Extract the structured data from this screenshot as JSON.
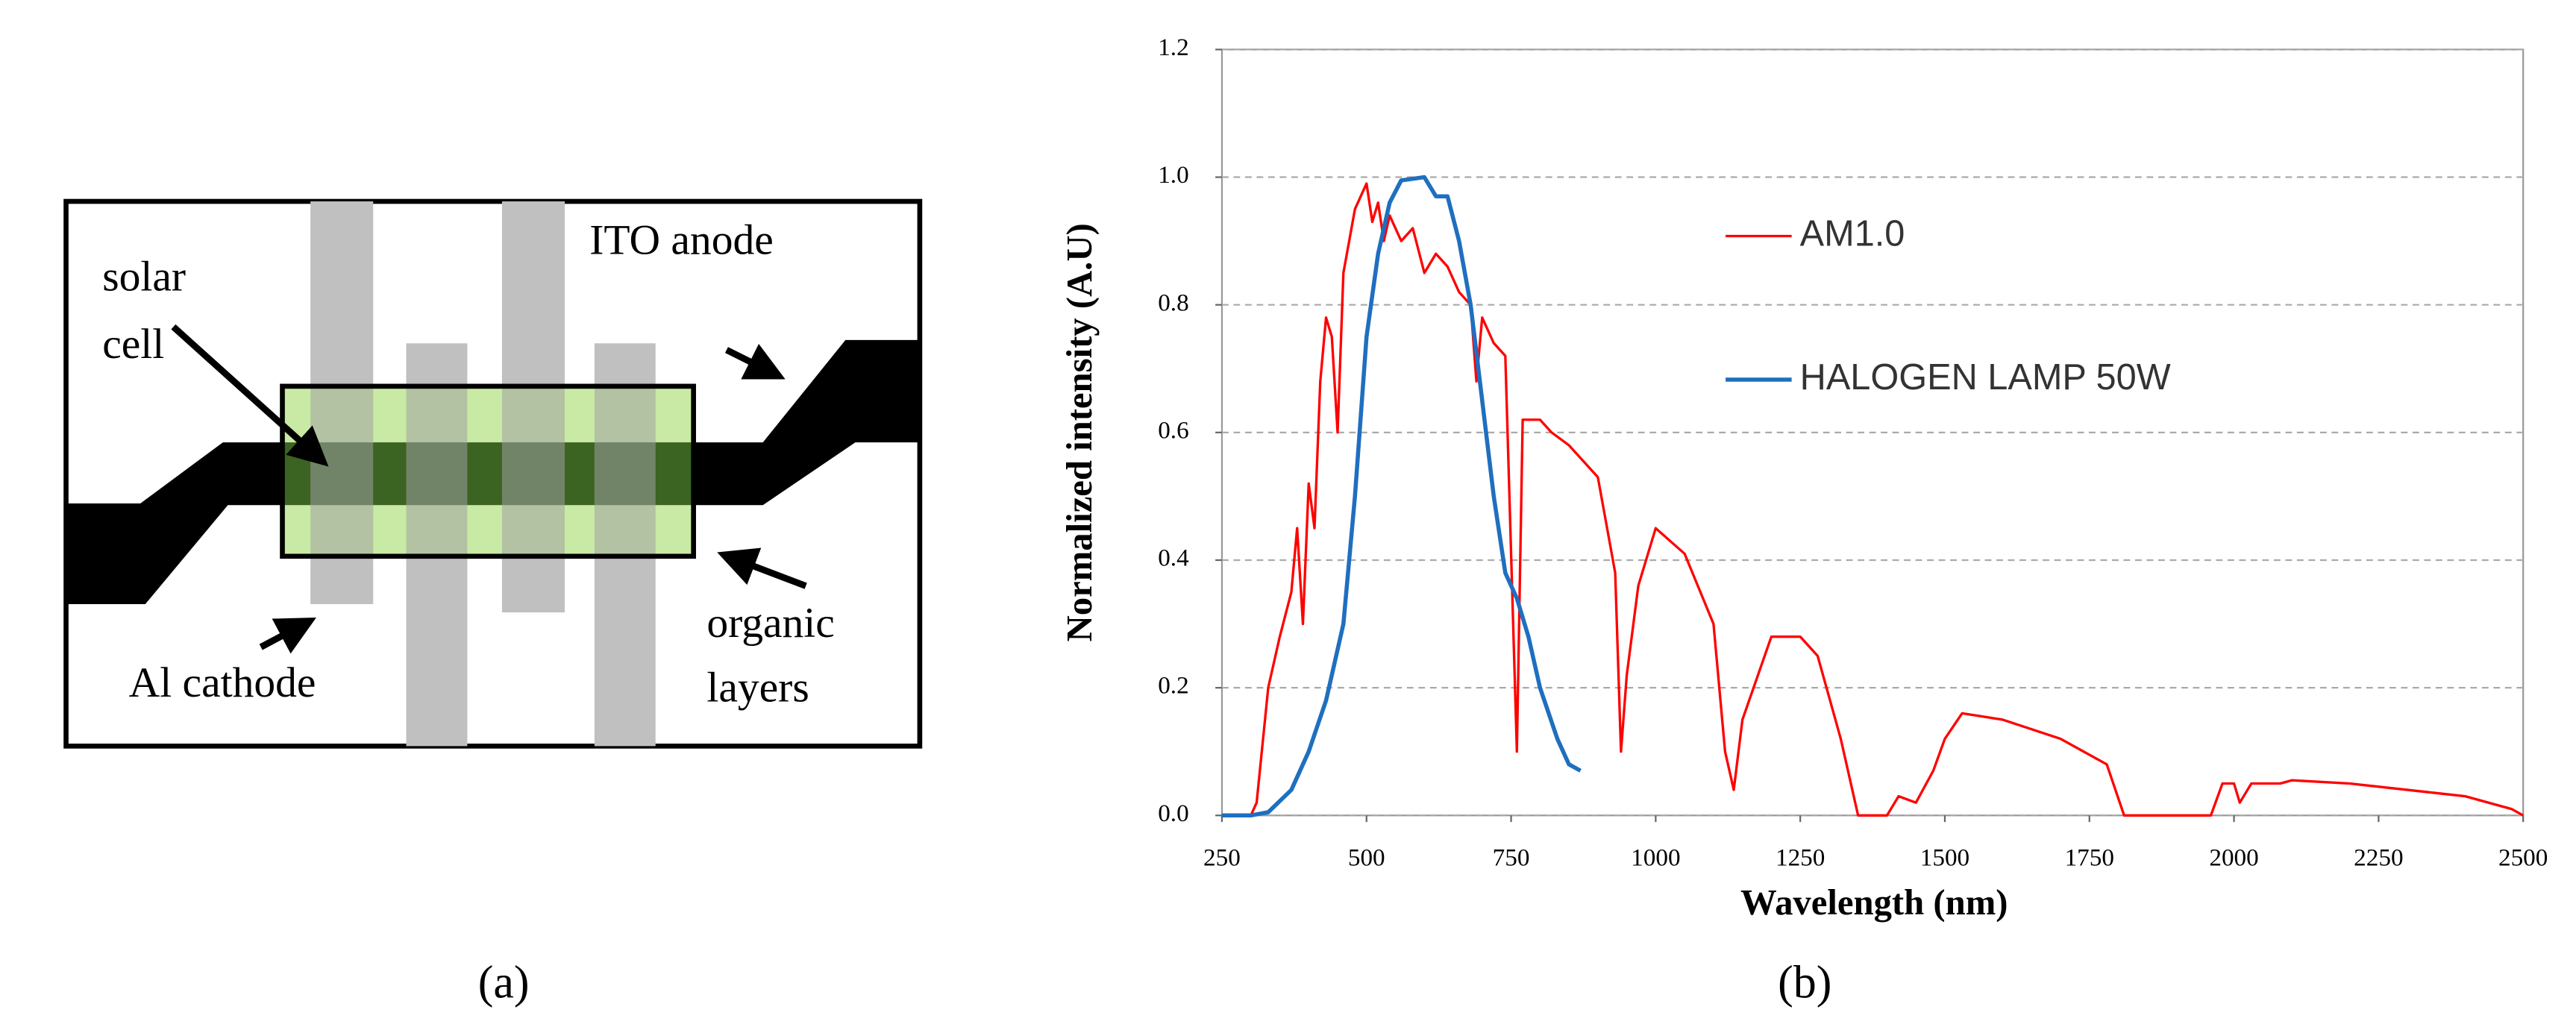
{
  "diagram": {
    "ito_anode": "ITO anode",
    "solar_cell": [
      "solar",
      "cell"
    ],
    "al_cathode": "Al cathode",
    "organic_layers": [
      "organic",
      "layers"
    ]
  },
  "captions": [
    "(a)",
    "(b)"
  ],
  "chart_data": {
    "type": "line",
    "xlabel": "Wavelength (nm)",
    "ylabel": "Normalized intensity (A.U)",
    "xlim": [
      250,
      2500
    ],
    "xticks": [
      250,
      500,
      750,
      1000,
      1250,
      1500,
      1750,
      2000,
      2250,
      2500
    ],
    "ylim": [
      0,
      1.2
    ],
    "yticks": [
      {
        "value": 0,
        "label": "0.0"
      },
      0.2,
      0.4,
      0.6,
      0.8,
      {
        "value": 1,
        "label": "1.0"
      },
      1.2
    ],
    "grid": true,
    "series": [
      {
        "name": "AM1.0",
        "color": "#ff0000",
        "x": [
          250,
          300,
          310,
          330,
          350,
          370,
          380,
          390,
          400,
          410,
          420,
          430,
          440,
          450,
          460,
          470,
          480,
          490,
          500,
          510,
          520,
          530,
          540,
          560,
          580,
          600,
          620,
          640,
          660,
          680,
          690,
          700,
          720,
          740,
          760,
          770,
          800,
          820,
          850,
          900,
          930,
          940,
          950,
          970,
          1000,
          1050,
          1100,
          1120,
          1135,
          1150,
          1200,
          1250,
          1280,
          1320,
          1350,
          1400,
          1420,
          1450,
          1480,
          1500,
          1530,
          1600,
          1700,
          1780,
          1810,
          1960,
          1980,
          2000,
          2010,
          2030,
          2080,
          2100,
          2200,
          2300,
          2400,
          2480,
          2500
        ],
        "values": [
          0,
          0,
          0.02,
          0.2,
          0.28,
          0.35,
          0.45,
          0.3,
          0.52,
          0.45,
          0.68,
          0.78,
          0.75,
          0.6,
          0.85,
          0.9,
          0.95,
          0.97,
          0.99,
          0.93,
          0.96,
          0.9,
          0.94,
          0.9,
          0.92,
          0.85,
          0.88,
          0.86,
          0.82,
          0.8,
          0.68,
          0.78,
          0.74,
          0.72,
          0.1,
          0.62,
          0.62,
          0.6,
          0.58,
          0.53,
          0.38,
          0.1,
          0.22,
          0.36,
          0.45,
          0.41,
          0.3,
          0.1,
          0.04,
          0.15,
          0.28,
          0.28,
          0.25,
          0.12,
          0,
          0,
          0.03,
          0.02,
          0.07,
          0.12,
          0.16,
          0.15,
          0.12,
          0.08,
          0,
          0,
          0.05,
          0.05,
          0.02,
          0.05,
          0.05,
          0.055,
          0.05,
          0.04,
          0.03,
          0.01,
          0
        ]
      },
      {
        "name": "HALOGEN LAMP 50W",
        "color": "#1f6fc0",
        "x": [
          250,
          300,
          330,
          370,
          400,
          430,
          460,
          480,
          500,
          520,
          540,
          560,
          600,
          620,
          640,
          660,
          680,
          700,
          720,
          740,
          760,
          780,
          800,
          830,
          850,
          870
        ],
        "values": [
          0,
          0,
          0.005,
          0.04,
          0.1,
          0.18,
          0.3,
          0.5,
          0.75,
          0.88,
          0.96,
          0.995,
          1,
          0.97,
          0.97,
          0.9,
          0.8,
          0.65,
          0.5,
          0.38,
          0.34,
          0.28,
          0.2,
          0.12,
          0.08,
          0.07
        ]
      }
    ]
  }
}
